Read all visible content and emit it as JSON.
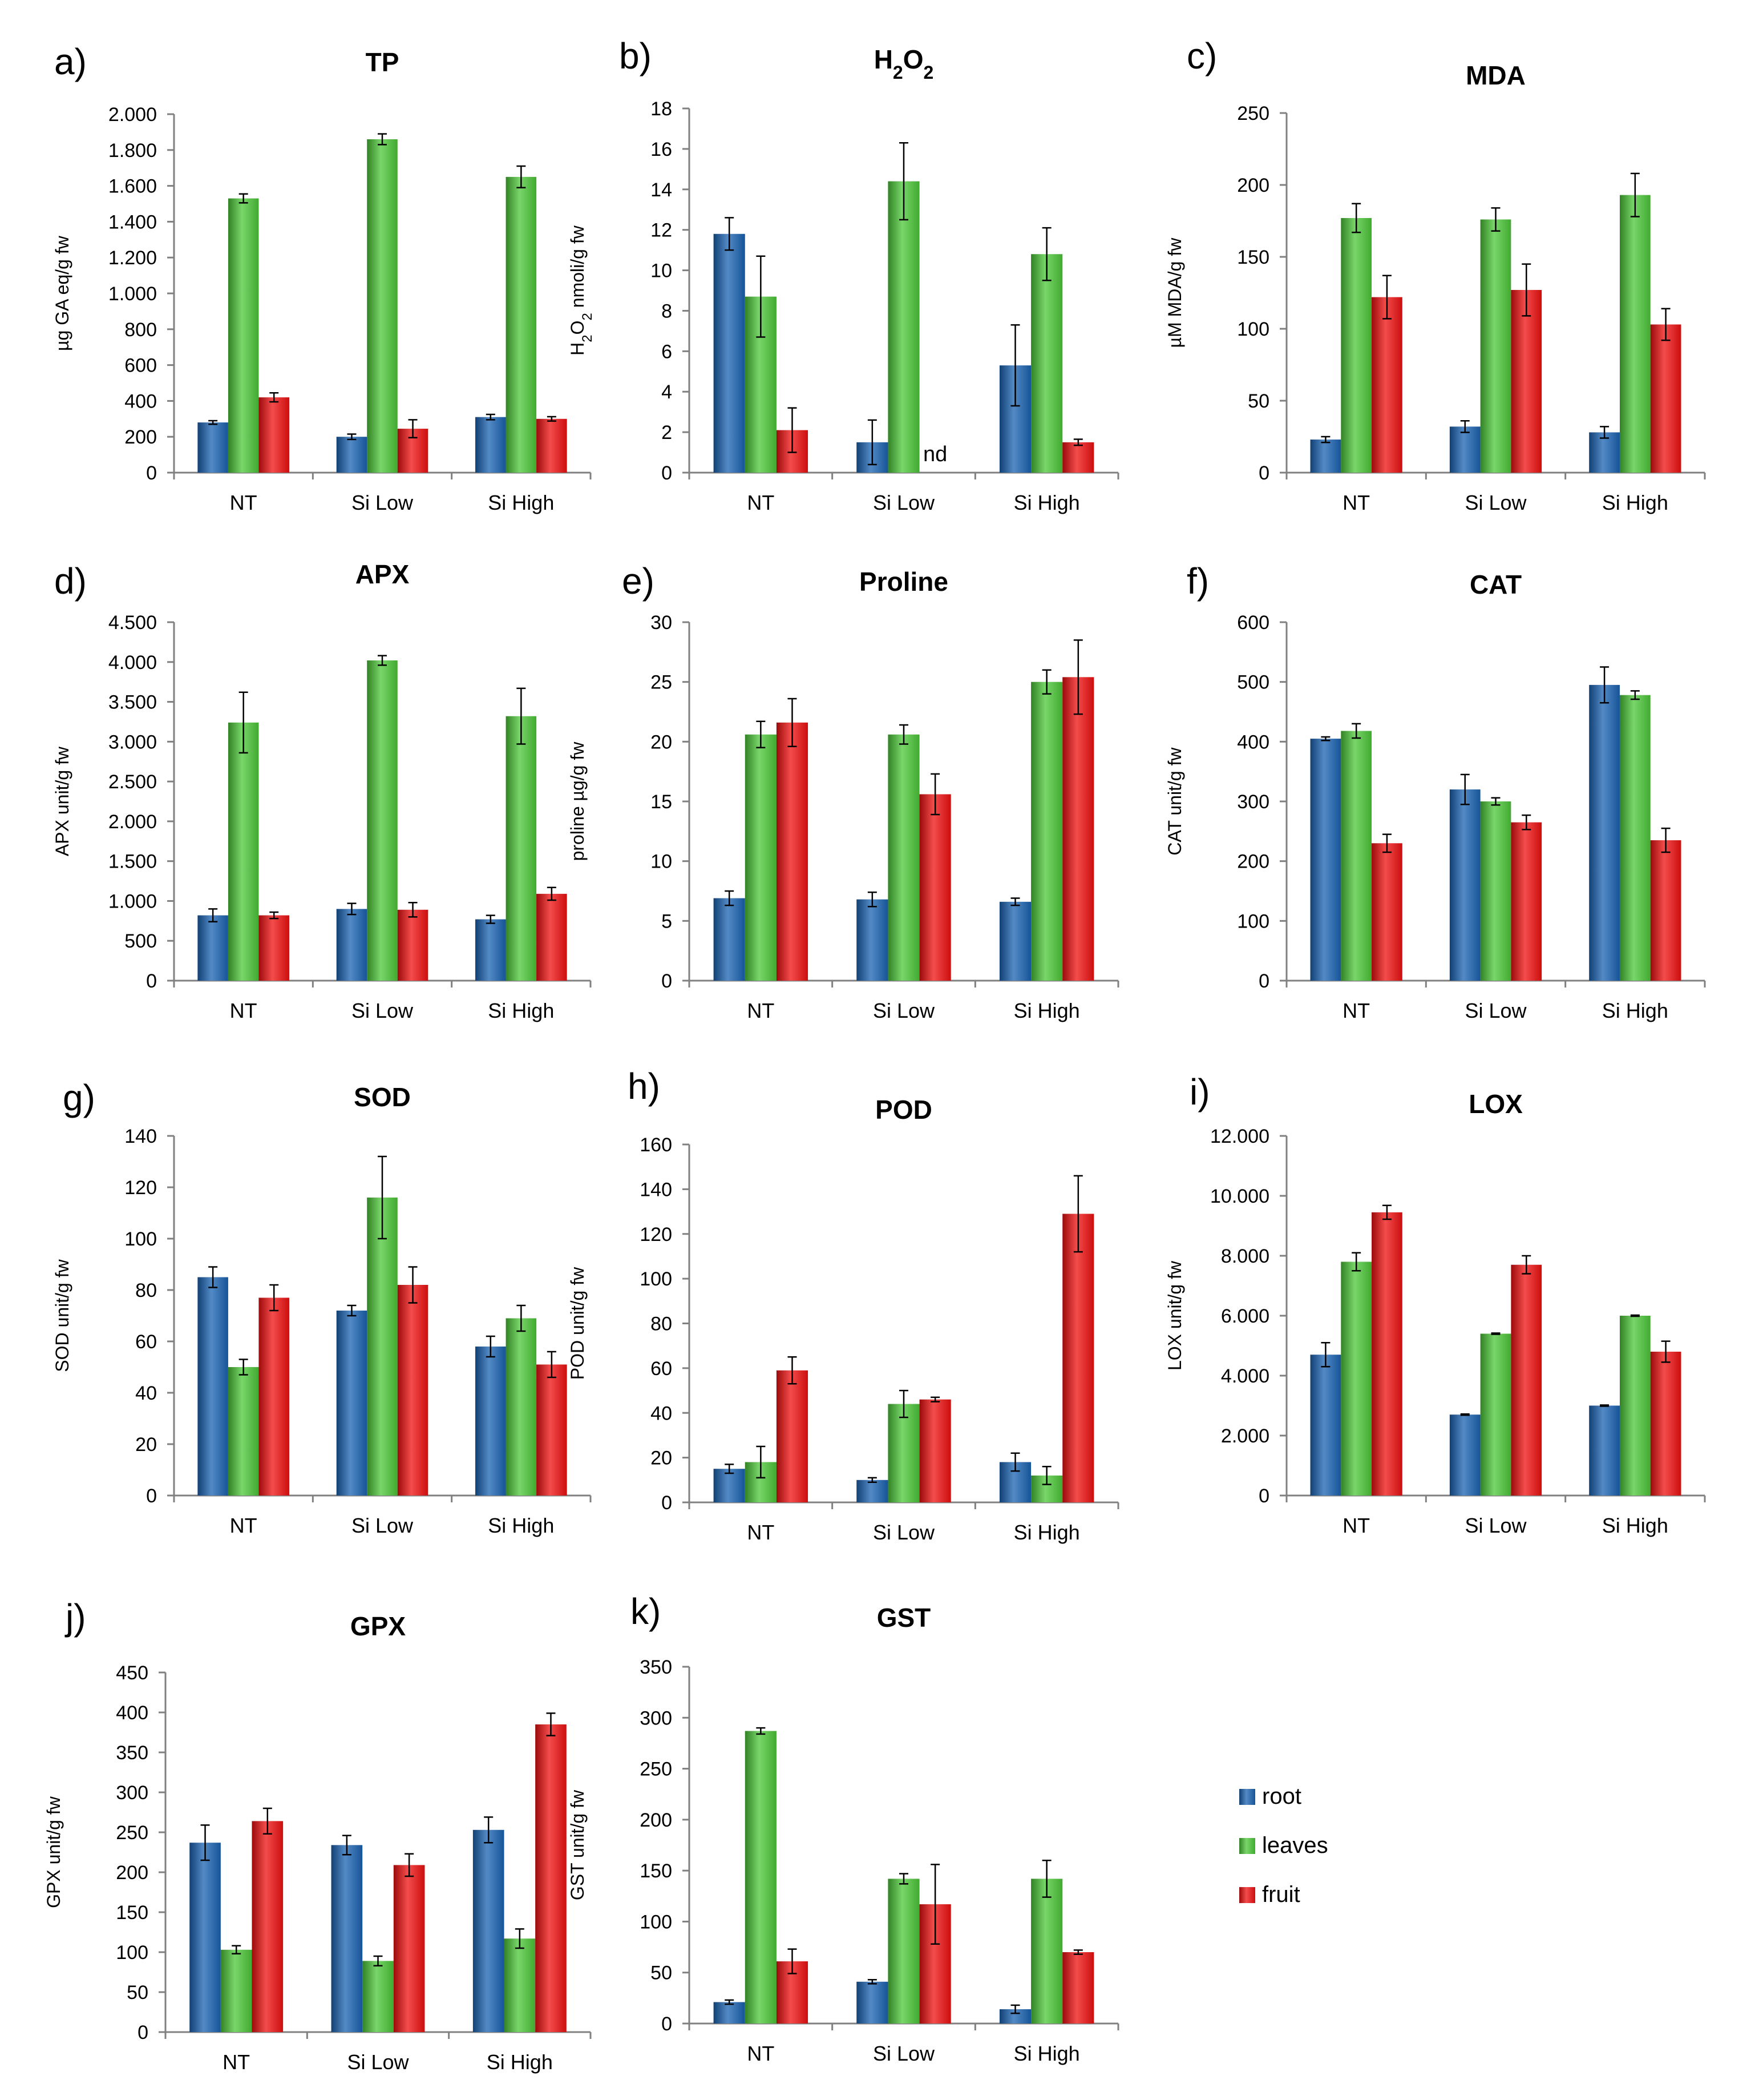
{
  "colors": {
    "root": "#1a63b3",
    "leaves": "#4cc838",
    "fruit": "#f01010"
  },
  "legend": [
    {
      "key": "root",
      "label": "root"
    },
    {
      "key": "leaves",
      "label": "leaves"
    },
    {
      "key": "fruit",
      "label": "fruit"
    }
  ],
  "chart_data": [
    {
      "id": "a",
      "letter": "a)",
      "type": "bar",
      "title": "TP",
      "title_sub": "",
      "ylabel": "µg GA eq/g fw",
      "ylabel_sub": "",
      "ylabel_rest": "",
      "ylim": [
        0,
        2000
      ],
      "yticks": [
        0,
        200,
        400,
        600,
        800,
        1000,
        1200,
        1400,
        1600,
        1800,
        2000
      ],
      "ytick_labels": [
        "0",
        "200",
        "400",
        "600",
        "800",
        "1.000",
        "1.200",
        "1.400",
        "1.600",
        "1.800",
        "2.000"
      ],
      "categories": [
        "NT",
        "Si Low",
        "Si High"
      ],
      "series": [
        {
          "name": "root",
          "values": [
            280,
            200,
            310
          ],
          "errors": [
            10,
            15,
            15
          ]
        },
        {
          "name": "leaves",
          "values": [
            1530,
            1860,
            1650
          ],
          "errors": [
            25,
            30,
            60
          ]
        },
        {
          "name": "fruit",
          "values": [
            420,
            245,
            300
          ],
          "errors": [
            25,
            50,
            12
          ]
        }
      ],
      "annotations": []
    },
    {
      "id": "b",
      "letter": "b)",
      "type": "bar",
      "title": "H",
      "title_sub": "2",
      "title_rest": "O",
      "title_sub2": "2",
      "ylabel": "H",
      "ylabel_sub": "2",
      "ylabel_rest": "O",
      "ylabel_sub2": "2",
      "ylabel_rest2": " nmoli/g fw",
      "ylim": [
        0,
        18
      ],
      "yticks": [
        0,
        2,
        4,
        6,
        8,
        10,
        12,
        14,
        16,
        18
      ],
      "ytick_labels": [
        "0",
        "2",
        "4",
        "6",
        "8",
        "10",
        "12",
        "14",
        "16",
        "18"
      ],
      "categories": [
        "NT",
        "Si Low",
        "Si High"
      ],
      "series": [
        {
          "name": "root",
          "values": [
            11.8,
            1.5,
            5.3
          ],
          "errors": [
            0.8,
            1.1,
            2.0
          ]
        },
        {
          "name": "leaves",
          "values": [
            8.7,
            14.4,
            10.8
          ],
          "errors": [
            2.0,
            1.9,
            1.3
          ]
        },
        {
          "name": "fruit",
          "values": [
            2.1,
            0,
            1.5
          ],
          "errors": [
            1.1,
            0,
            0.15
          ]
        }
      ],
      "annotations": [
        {
          "text": "nd",
          "category": "Si Low",
          "series": "fruit"
        }
      ]
    },
    {
      "id": "c",
      "letter": "c)",
      "type": "bar",
      "title": "MDA",
      "title_sub": "",
      "ylabel": "µM MDA/g fw",
      "ylabel_sub": "",
      "ylabel_rest": "",
      "ylim": [
        0,
        250
      ],
      "yticks": [
        0,
        50,
        100,
        150,
        200,
        250
      ],
      "ytick_labels": [
        "0",
        "50",
        "100",
        "150",
        "200",
        "250"
      ],
      "categories": [
        "NT",
        "Si Low",
        "Si High"
      ],
      "series": [
        {
          "name": "root",
          "values": [
            23,
            32,
            28
          ],
          "errors": [
            2,
            4,
            4
          ]
        },
        {
          "name": "leaves",
          "values": [
            177,
            176,
            193
          ],
          "errors": [
            10,
            8,
            15
          ]
        },
        {
          "name": "fruit",
          "values": [
            122,
            127,
            103
          ],
          "errors": [
            15,
            18,
            11
          ]
        }
      ],
      "annotations": []
    },
    {
      "id": "d",
      "letter": "d)",
      "type": "bar",
      "title": "APX",
      "title_sub": "",
      "ylabel": "APX unit/g fw",
      "ylabel_sub": "",
      "ylabel_rest": "",
      "ylim": [
        0,
        4500
      ],
      "yticks": [
        0,
        500,
        1000,
        1500,
        2000,
        2500,
        3000,
        3500,
        4000,
        4500
      ],
      "ytick_labels": [
        "0",
        "500",
        "1.000",
        "1.500",
        "2.000",
        "2.500",
        "3.000",
        "3.500",
        "4.000",
        "4.500"
      ],
      "categories": [
        "NT",
        "Si Low",
        "Si High"
      ],
      "series": [
        {
          "name": "root",
          "values": [
            820,
            900,
            770
          ],
          "errors": [
            80,
            70,
            50
          ]
        },
        {
          "name": "leaves",
          "values": [
            3240,
            4020,
            3320
          ],
          "errors": [
            380,
            60,
            350
          ]
        },
        {
          "name": "fruit",
          "values": [
            820,
            890,
            1090
          ],
          "errors": [
            40,
            90,
            80
          ]
        }
      ],
      "annotations": []
    },
    {
      "id": "e",
      "letter": "e)",
      "type": "bar",
      "title": "Proline",
      "title_sub": "",
      "ylabel": "proline µg/g fw",
      "ylabel_sub": "",
      "ylabel_rest": "",
      "ylim": [
        0,
        30
      ],
      "yticks": [
        0,
        5,
        10,
        15,
        20,
        25,
        30
      ],
      "ytick_labels": [
        "0",
        "5",
        "10",
        "15",
        "20",
        "25",
        "30"
      ],
      "categories": [
        "NT",
        "Si Low",
        "Si High"
      ],
      "series": [
        {
          "name": "root",
          "values": [
            6.9,
            6.8,
            6.6
          ],
          "errors": [
            0.6,
            0.6,
            0.3
          ]
        },
        {
          "name": "leaves",
          "values": [
            20.6,
            20.6,
            25.0
          ],
          "errors": [
            1.1,
            0.8,
            1.0
          ]
        },
        {
          "name": "fruit",
          "values": [
            21.6,
            15.6,
            25.4
          ],
          "errors": [
            2.0,
            1.7,
            3.1
          ]
        }
      ],
      "annotations": []
    },
    {
      "id": "f",
      "letter": "f)",
      "type": "bar",
      "title": "CAT",
      "title_sub": "",
      "ylabel": "CAT unit/g fw",
      "ylabel_sub": "",
      "ylabel_rest": "",
      "ylim": [
        0,
        600
      ],
      "yticks": [
        0,
        100,
        200,
        300,
        400,
        500,
        600
      ],
      "ytick_labels": [
        "0",
        "100",
        "200",
        "300",
        "400",
        "500",
        "600"
      ],
      "categories": [
        "NT",
        "Si Low",
        "Si High"
      ],
      "series": [
        {
          "name": "root",
          "values": [
            405,
            320,
            495
          ],
          "errors": [
            3,
            25,
            30
          ]
        },
        {
          "name": "leaves",
          "values": [
            418,
            300,
            478
          ],
          "errors": [
            12,
            6,
            7
          ]
        },
        {
          "name": "fruit",
          "values": [
            230,
            265,
            235
          ],
          "errors": [
            15,
            12,
            20
          ]
        }
      ],
      "annotations": []
    },
    {
      "id": "g",
      "letter": "g)",
      "type": "bar",
      "title": "SOD",
      "title_sub": "",
      "ylabel": "SOD unit/g fw",
      "ylabel_sub": "",
      "ylabel_rest": "",
      "ylim": [
        0,
        140
      ],
      "yticks": [
        0,
        20,
        40,
        60,
        80,
        100,
        120,
        140
      ],
      "ytick_labels": [
        "0",
        "20",
        "40",
        "60",
        "80",
        "100",
        "120",
        "140"
      ],
      "categories": [
        "NT",
        "Si Low",
        "Si High"
      ],
      "series": [
        {
          "name": "root",
          "values": [
            85,
            72,
            58
          ],
          "errors": [
            4,
            2,
            4
          ]
        },
        {
          "name": "leaves",
          "values": [
            50,
            116,
            69
          ],
          "errors": [
            3,
            16,
            5
          ]
        },
        {
          "name": "fruit",
          "values": [
            77,
            82,
            51
          ],
          "errors": [
            5,
            7,
            5
          ]
        }
      ],
      "annotations": []
    },
    {
      "id": "h",
      "letter": "h)",
      "type": "bar",
      "title": "POD",
      "title_sub": "",
      "ylabel": "POD unit/g fw",
      "ylabel_sub": "",
      "ylabel_rest": "",
      "ylim": [
        0,
        160
      ],
      "yticks": [
        0,
        20,
        40,
        60,
        80,
        100,
        120,
        140,
        160
      ],
      "ytick_labels": [
        "0",
        "20",
        "40",
        "60",
        "80",
        "100",
        "120",
        "140",
        "160"
      ],
      "categories": [
        "NT",
        "Si Low",
        "Si High"
      ],
      "series": [
        {
          "name": "root",
          "values": [
            15,
            10,
            18
          ],
          "errors": [
            2,
            1,
            4
          ]
        },
        {
          "name": "leaves",
          "values": [
            18,
            44,
            12
          ],
          "errors": [
            7,
            6,
            4
          ]
        },
        {
          "name": "fruit",
          "values": [
            59,
            46,
            129
          ],
          "errors": [
            6,
            1,
            17
          ]
        }
      ],
      "annotations": []
    },
    {
      "id": "i",
      "letter": "i)",
      "type": "bar",
      "title": "LOX",
      "title_sub": "",
      "ylabel": "LOX unit/g fw",
      "ylabel_sub": "",
      "ylabel_rest": "",
      "ylim": [
        0,
        12000
      ],
      "yticks": [
        0,
        2000,
        4000,
        6000,
        8000,
        10000,
        12000
      ],
      "ytick_labels": [
        "0",
        "2.000",
        "4.000",
        "6.000",
        "8.000",
        "10.000",
        "12.000"
      ],
      "categories": [
        "NT",
        "Si Low",
        "Si High"
      ],
      "series": [
        {
          "name": "root",
          "values": [
            4700,
            2700,
            3000
          ],
          "errors": [
            400,
            20,
            20
          ]
        },
        {
          "name": "leaves",
          "values": [
            7800,
            5400,
            6000
          ],
          "errors": [
            300,
            20,
            20
          ]
        },
        {
          "name": "fruit",
          "values": [
            9450,
            7700,
            4800
          ],
          "errors": [
            230,
            300,
            350
          ]
        }
      ],
      "annotations": []
    },
    {
      "id": "j",
      "letter": "j)",
      "type": "bar",
      "title": "GPX",
      "title_sub": "",
      "ylabel": "GPX unit/g fw",
      "ylabel_sub": "",
      "ylabel_rest": "",
      "ylim": [
        0,
        450
      ],
      "yticks": [
        0,
        50,
        100,
        150,
        200,
        250,
        300,
        350,
        400,
        450
      ],
      "ytick_labels": [
        "0",
        "50",
        "100",
        "150",
        "200",
        "250",
        "300",
        "350",
        "400",
        "450"
      ],
      "categories": [
        "NT",
        "Si Low",
        "Si High"
      ],
      "series": [
        {
          "name": "root",
          "values": [
            237,
            234,
            253
          ],
          "errors": [
            22,
            12,
            16
          ]
        },
        {
          "name": "leaves",
          "values": [
            103,
            89,
            117
          ],
          "errors": [
            5,
            6,
            12
          ]
        },
        {
          "name": "fruit",
          "values": [
            264,
            209,
            385
          ],
          "errors": [
            16,
            14,
            14
          ]
        }
      ],
      "annotations": []
    },
    {
      "id": "k",
      "letter": "k)",
      "type": "bar",
      "title": "GST",
      "title_sub": "",
      "ylabel": "GST unit/g fw",
      "ylabel_sub": "",
      "ylabel_rest": "",
      "ylim": [
        0,
        350
      ],
      "yticks": [
        0,
        50,
        100,
        150,
        200,
        250,
        300,
        350
      ],
      "ytick_labels": [
        "0",
        "50",
        "100",
        "150",
        "200",
        "250",
        "300",
        "350"
      ],
      "categories": [
        "NT",
        "Si Low",
        "Si High"
      ],
      "series": [
        {
          "name": "root",
          "values": [
            21,
            41,
            14
          ],
          "errors": [
            2,
            2,
            4
          ]
        },
        {
          "name": "leaves",
          "values": [
            287,
            142,
            142
          ],
          "errors": [
            3,
            5,
            18
          ]
        },
        {
          "name": "fruit",
          "values": [
            61,
            117,
            70
          ],
          "errors": [
            12,
            39,
            2
          ]
        }
      ],
      "annotations": []
    }
  ]
}
